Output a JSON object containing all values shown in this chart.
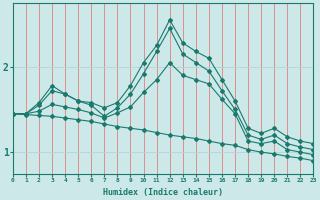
{
  "xlabel": "Humidex (Indice chaleur)",
  "x_ticks": [
    0,
    1,
    2,
    3,
    4,
    5,
    6,
    7,
    8,
    9,
    10,
    11,
    12,
    13,
    14,
    15,
    16,
    17,
    18,
    19,
    20,
    21,
    22,
    23
  ],
  "y_ticks": [
    1,
    2
  ],
  "ylim": [
    0.75,
    2.75
  ],
  "xlim": [
    0,
    23
  ],
  "background_color": "#cce8e8",
  "line_color": "#1a7a6e",
  "grid_color": "#b0d4d4",
  "series": [
    [
      1.45,
      1.45,
      1.58,
      1.78,
      1.68,
      1.6,
      1.58,
      1.52,
      1.58,
      1.78,
      2.05,
      2.25,
      2.55,
      2.28,
      2.18,
      2.1,
      1.85,
      1.6,
      1.28,
      1.22,
      1.28,
      1.18,
      1.13,
      1.1
    ],
    [
      1.45,
      1.45,
      1.55,
      1.72,
      1.68,
      1.6,
      1.55,
      1.42,
      1.52,
      1.68,
      1.92,
      2.18,
      2.45,
      2.15,
      2.05,
      1.95,
      1.72,
      1.5,
      1.2,
      1.15,
      1.2,
      1.1,
      1.06,
      1.03
    ],
    [
      1.45,
      1.45,
      1.48,
      1.56,
      1.53,
      1.5,
      1.46,
      1.4,
      1.46,
      1.53,
      1.7,
      1.85,
      2.05,
      1.9,
      1.85,
      1.8,
      1.62,
      1.45,
      1.13,
      1.1,
      1.13,
      1.03,
      1.0,
      0.97
    ],
    [
      1.45,
      1.44,
      1.43,
      1.42,
      1.4,
      1.38,
      1.36,
      1.33,
      1.3,
      1.28,
      1.26,
      1.23,
      1.2,
      1.18,
      1.16,
      1.13,
      1.1,
      1.08,
      1.03,
      1.0,
      0.98,
      0.95,
      0.93,
      0.9
    ]
  ]
}
